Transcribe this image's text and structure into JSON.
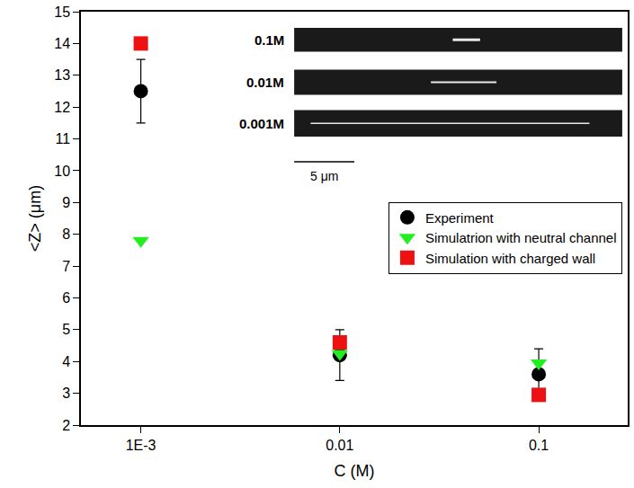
{
  "chart_data": {
    "type": "scatter",
    "x_label": "C (M)",
    "y_label": "<Z> (μm)",
    "log": "x",
    "grid": false,
    "legend": "right",
    "x": [
      0.001,
      0.01,
      0.1
    ],
    "xlim": [
      0.0005,
      0.28
    ],
    "xticks": [
      {
        "value": 0.001,
        "label": "1E-3"
      },
      0.01,
      0.1
    ],
    "ylim": [
      2,
      15
    ],
    "yticks": [
      2,
      3,
      4,
      5,
      6,
      7,
      8,
      9,
      10,
      11,
      12,
      13,
      14,
      15
    ],
    "series": [
      {
        "name": "Experiment",
        "color": "#000000",
        "marker": "circle",
        "values": [
          12.5,
          4.2,
          3.6
        ],
        "errors": [
          1.0,
          0.8,
          0.8
        ]
      },
      {
        "name": "Simulatrion with neutral channel",
        "color": "#22ee22",
        "marker": "triangle-down",
        "values": [
          7.8,
          4.25,
          3.95
        ]
      },
      {
        "name": "Simulation with charged wall",
        "color": "#ee1111",
        "marker": "square",
        "values": [
          14.0,
          4.6,
          2.95
        ]
      }
    ],
    "annotations": [
      "0.1M",
      "0.01M",
      "0.001M",
      "5 μm"
    ]
  }
}
